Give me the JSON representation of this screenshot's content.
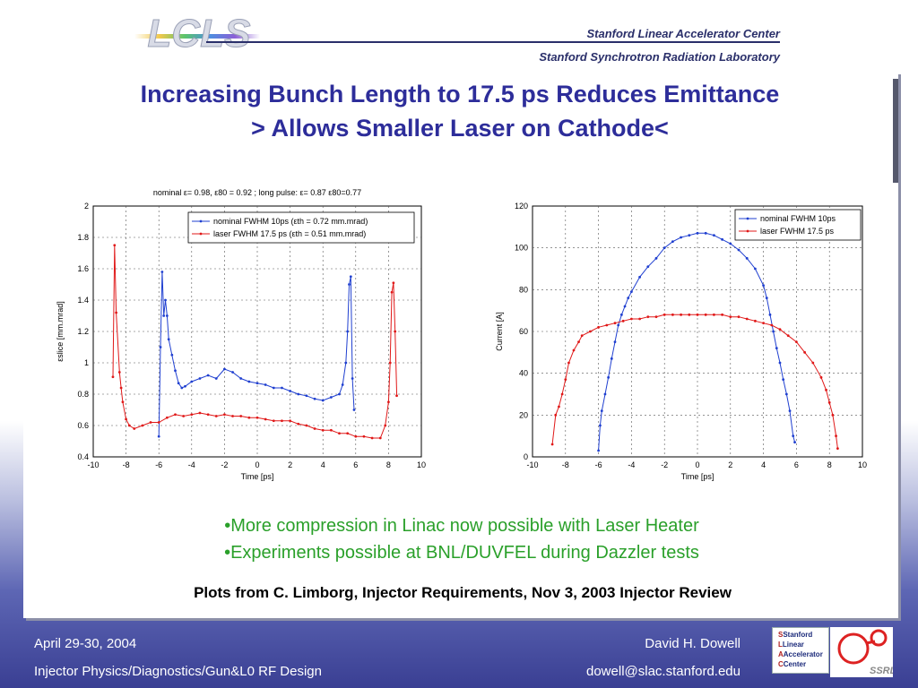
{
  "header": {
    "logo_text": "LCLS",
    "org_line1": "Stanford Linear Accelerator Center",
    "org_line2": "Stanford Synchrotron Radiation Laboratory"
  },
  "title": {
    "line1": "Increasing Bunch Length to 17.5 ps Reduces Emittance",
    "line2": "> Allows Smaller Laser on Cathode<"
  },
  "bullets": [
    "•More compression in Linac now possible with Laser Heater",
    "•Experiments possible at BNL/DUVFEL during Dazzler tests"
  ],
  "caption": "Plots from C. Limborg, Injector Requirements, Nov 3, 2003 Injector Review",
  "footer": {
    "date": "April 29-30, 2004",
    "course": "Injector Physics/Diagnostics/Gun&L0 RF Design",
    "author": "David H. Dowell",
    "email": "dowell@slac.stanford.edu"
  },
  "logos": {
    "slac_lines": [
      "Stanford",
      "Linear",
      "Accelerator",
      "Center"
    ],
    "ssrl": "SSRL"
  },
  "colors": {
    "title": "#2d2d9a",
    "bullets": "#2aa02a",
    "series_nominal": "#1f3fd0",
    "series_laser": "#e01818"
  },
  "chart_data": [
    {
      "type": "line",
      "annotation": "nominal ε= 0.98, ε80 = 0.92 ; long pulse: ε= 0.87 ε80=0.77",
      "xlabel": "Time [ps]",
      "ylabel": "εslice [mm.mrad]",
      "xlim": [
        -10,
        10
      ],
      "ylim": [
        0.4,
        2
      ],
      "xticks": [
        -10,
        -8,
        -6,
        -4,
        -2,
        0,
        2,
        4,
        6,
        8,
        10
      ],
      "yticks": [
        0.4,
        0.6,
        0.8,
        1,
        1.2,
        1.4,
        1.6,
        1.8,
        2
      ],
      "grid": true,
      "legend_position": "top-right",
      "series": [
        {
          "name": "nominal FWHM 10ps (εth = 0.72 mm.mrad)",
          "x": [
            -6,
            -5.9,
            -5.8,
            -5.7,
            -5.6,
            -5.5,
            -5.4,
            -5.2,
            -5,
            -4.8,
            -4.6,
            -4.4,
            -4,
            -3.5,
            -3,
            -2.5,
            -2,
            -1.5,
            -1,
            -0.5,
            0,
            0.5,
            1,
            1.5,
            2,
            2.5,
            3,
            3.5,
            4,
            4.5,
            5,
            5.2,
            5.4,
            5.5,
            5.6,
            5.7,
            5.8,
            5.9
          ],
          "y": [
            0.53,
            1.1,
            1.58,
            1.3,
            1.4,
            1.3,
            1.15,
            1.05,
            0.95,
            0.87,
            0.84,
            0.85,
            0.88,
            0.9,
            0.92,
            0.9,
            0.96,
            0.94,
            0.9,
            0.88,
            0.87,
            0.86,
            0.84,
            0.84,
            0.82,
            0.8,
            0.79,
            0.77,
            0.76,
            0.78,
            0.8,
            0.86,
            1.0,
            1.2,
            1.5,
            1.55,
            0.9,
            0.7
          ]
        },
        {
          "name": "laser FWHM 17.5 ps (εth = 0.51 mm.mrad)",
          "x": [
            -8.8,
            -8.7,
            -8.6,
            -8.4,
            -8.3,
            -8.2,
            -8,
            -7.8,
            -7.5,
            -7,
            -6.5,
            -6,
            -5.5,
            -5,
            -4.5,
            -4,
            -3.5,
            -3,
            -2.5,
            -2,
            -1.5,
            -1,
            -0.5,
            0,
            0.5,
            1,
            1.5,
            2,
            2.5,
            3,
            3.5,
            4,
            4.5,
            5,
            5.5,
            6,
            6.5,
            7,
            7.5,
            7.8,
            8,
            8.1,
            8.2,
            8.3,
            8.4,
            8.5
          ],
          "y": [
            0.91,
            1.75,
            1.32,
            0.94,
            0.84,
            0.75,
            0.64,
            0.6,
            0.58,
            0.6,
            0.62,
            0.62,
            0.65,
            0.67,
            0.66,
            0.67,
            0.68,
            0.67,
            0.66,
            0.67,
            0.66,
            0.66,
            0.65,
            0.65,
            0.64,
            0.63,
            0.63,
            0.63,
            0.61,
            0.6,
            0.58,
            0.57,
            0.57,
            0.55,
            0.55,
            0.53,
            0.53,
            0.52,
            0.52,
            0.6,
            0.75,
            1.0,
            1.45,
            1.51,
            1.2,
            0.79
          ]
        }
      ]
    },
    {
      "type": "line",
      "xlabel": "Time [ps]",
      "ylabel": "Current [A]",
      "xlim": [
        -10,
        10
      ],
      "ylim": [
        0,
        120
      ],
      "xticks": [
        -10,
        -8,
        -6,
        -4,
        -2,
        0,
        2,
        4,
        6,
        8,
        10
      ],
      "yticks": [
        0,
        20,
        40,
        60,
        80,
        100,
        120
      ],
      "grid": true,
      "legend_position": "top-right",
      "series": [
        {
          "name": "nominal FWHM 10ps",
          "x": [
            -6,
            -5.9,
            -5.8,
            -5.6,
            -5.4,
            -5.2,
            -5,
            -4.8,
            -4.6,
            -4.4,
            -4.2,
            -4,
            -3.5,
            -3,
            -2.5,
            -2,
            -1.5,
            -1,
            -0.5,
            0,
            0.5,
            1,
            1.5,
            2,
            2.5,
            3,
            3.5,
            4,
            4.2,
            4.4,
            4.6,
            4.8,
            5,
            5.2,
            5.4,
            5.6,
            5.8,
            5.9
          ],
          "y": [
            3,
            15,
            22,
            30,
            38,
            47,
            55,
            63,
            68,
            72,
            76,
            79,
            86,
            91,
            95,
            100,
            103,
            105,
            106,
            107,
            107,
            106,
            104,
            102,
            99,
            95,
            90,
            82,
            76,
            68,
            60,
            52,
            45,
            37,
            30,
            22,
            10,
            7
          ]
        },
        {
          "name": "laser FWHM 17.5 ps",
          "x": [
            -8.8,
            -8.6,
            -8.4,
            -8.2,
            -8,
            -7.8,
            -7.5,
            -7.2,
            -7,
            -6.5,
            -6,
            -5.5,
            -5,
            -4.5,
            -4,
            -3.5,
            -3,
            -2.5,
            -2,
            -1.5,
            -1,
            -0.5,
            0,
            0.5,
            1,
            1.5,
            2,
            2.5,
            3,
            3.5,
            4,
            4.5,
            5,
            5.5,
            6,
            6.5,
            7,
            7.5,
            7.8,
            8,
            8.2,
            8.4,
            8.5
          ],
          "y": [
            6,
            20,
            24,
            30,
            37,
            45,
            51,
            55,
            58,
            60,
            62,
            63,
            64,
            65,
            66,
            66,
            67,
            67,
            68,
            68,
            68,
            68,
            68,
            68,
            68,
            68,
            67,
            67,
            66,
            65,
            64,
            63,
            61,
            58,
            55,
            50,
            45,
            38,
            32,
            26,
            20,
            10,
            4
          ]
        }
      ]
    }
  ]
}
